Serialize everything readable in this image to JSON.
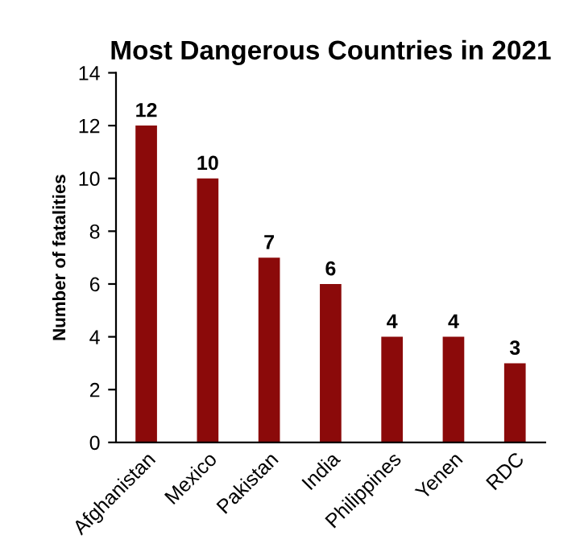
{
  "chart_data": {
    "type": "bar",
    "title": "Most Dangerous Countries in 2021",
    "ylabel": "Number of fatalities",
    "categories": [
      "Afghanistan",
      "Mexico",
      "Pakistan",
      "India",
      "Philippines",
      "Yenen",
      "RDC"
    ],
    "values": [
      12,
      10,
      7,
      6,
      4,
      4,
      3
    ],
    "color": "#8b0a0a",
    "ylim": [
      0,
      14
    ],
    "yticks": [
      0,
      2,
      4,
      6,
      8,
      10,
      12,
      14
    ],
    "grid": false,
    "data_labels": true
  }
}
